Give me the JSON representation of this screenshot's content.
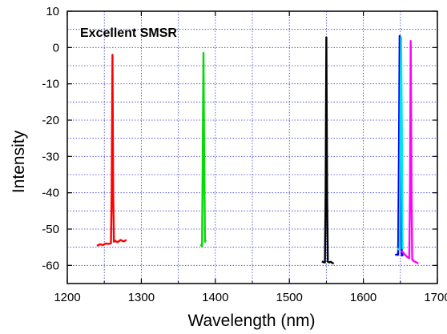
{
  "chart_data": {
    "type": "line",
    "title": "",
    "xlabel": "Wavelength (nm)",
    "ylabel": "Intensity",
    "xlim": [
      1200,
      1700
    ],
    "ylim": [
      -65,
      10
    ],
    "xticks": [
      1200,
      1300,
      1400,
      1500,
      1600,
      1700
    ],
    "yticks": [
      10,
      0,
      -10,
      -20,
      -30,
      -40,
      -50,
      -60
    ],
    "grid": true,
    "legend": "none",
    "annotations": [
      {
        "text": "Excellent SMSR"
      }
    ],
    "series": [
      {
        "color": "#ff0000",
        "x": [
          1240,
          1244,
          1248,
          1252,
          1256,
          1259,
          1260,
          1261,
          1262,
          1263,
          1264,
          1268,
          1272,
          1276,
          1280
        ],
        "y": [
          -54.6,
          -54.2,
          -54.4,
          -54.0,
          -54.1,
          -53.9,
          -40,
          -2,
          -40,
          -53.5,
          -53.2,
          -53.6,
          -53.0,
          -53.4,
          -53.0
        ]
      },
      {
        "color": "#00dd00",
        "x": [
          1380,
          1381,
          1382,
          1383,
          1384,
          1385,
          1386,
          1387
        ],
        "y": [
          -54.6,
          -54.4,
          -54.8,
          -30,
          -1.5,
          -30,
          -53.5,
          -53.0
        ]
      },
      {
        "color": "#000000",
        "x": [
          1544,
          1546,
          1548,
          1549,
          1550,
          1551,
          1552,
          1554,
          1556,
          1558,
          1560
        ],
        "y": [
          -58.9,
          -59.1,
          -59.2,
          -40,
          2.8,
          -40,
          -59.0,
          -59.2,
          -59.0,
          -59.3,
          -59.5
        ]
      },
      {
        "color": "#0000ff",
        "x": [
          1643,
          1645,
          1647,
          1648,
          1649,
          1650,
          1652,
          1654
        ],
        "y": [
          -57.2,
          -57.0,
          -57.1,
          -30,
          3.2,
          -30,
          -57.3,
          -57.0
        ]
      },
      {
        "color": "#00e5ee",
        "x": [
          1646,
          1648,
          1649,
          1650,
          1651,
          1652,
          1653
        ],
        "y": [
          -55.4,
          -55.6,
          -55.3,
          -20,
          2.8,
          -20,
          -55.5
        ]
      },
      {
        "color": "#ff00ff",
        "x": [
          1652,
          1656,
          1660,
          1662,
          1663,
          1664,
          1665,
          1666,
          1668,
          1670,
          1672,
          1674
        ],
        "y": [
          -56.0,
          -57.0,
          -57.8,
          -58.0,
          -40,
          1.8,
          -40,
          -58.4,
          -58.8,
          -59.0,
          -59.2,
          -59.5
        ]
      }
    ]
  }
}
